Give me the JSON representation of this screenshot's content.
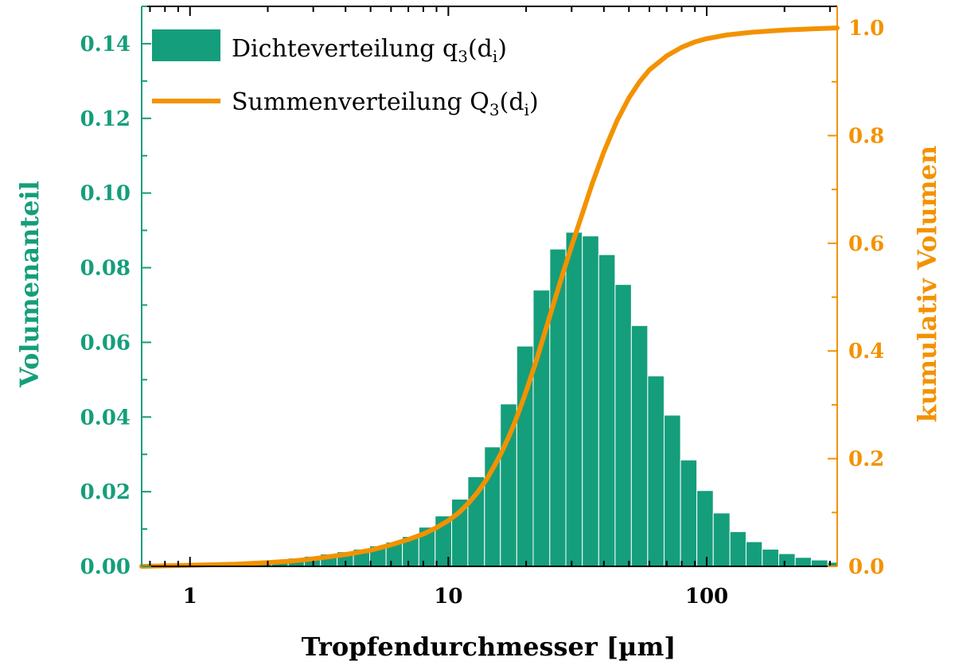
{
  "chart_data": {
    "type": "bar+line",
    "x_scale": "log",
    "xlabel": "Tropfendurchmesser [µm]",
    "x_ticks": [
      {
        "value": 1,
        "label": "1"
      },
      {
        "value": 10,
        "label": "10"
      },
      {
        "value": 100,
        "label": "100"
      }
    ],
    "xlim": [
      0.65,
      320
    ],
    "left_axis": {
      "label": "Volumenanteil",
      "ylim": [
        0,
        0.15
      ],
      "ticks": [
        {
          "value": 0.0,
          "label": "0.00"
        },
        {
          "value": 0.02,
          "label": "0.02"
        },
        {
          "value": 0.04,
          "label": "0.04"
        },
        {
          "value": 0.06,
          "label": "0.06"
        },
        {
          "value": 0.08,
          "label": "0.08"
        },
        {
          "value": 0.1,
          "label": "0.10"
        },
        {
          "value": 0.12,
          "label": "0.12"
        },
        {
          "value": 0.14,
          "label": "0.14"
        }
      ]
    },
    "right_axis": {
      "label": "kumulativ Volumen",
      "ylim": [
        0,
        1.04
      ],
      "ticks": [
        {
          "value": 0.0,
          "label": "0.0"
        },
        {
          "value": 0.2,
          "label": "0.2"
        },
        {
          "value": 0.4,
          "label": "0.4"
        },
        {
          "value": 0.6,
          "label": "0.6"
        },
        {
          "value": 0.8,
          "label": "0.8"
        },
        {
          "value": 1.0,
          "label": "1.0"
        }
      ]
    },
    "grid": false,
    "legend": {
      "position": "top-left",
      "entries": [
        {
          "kind": "bar",
          "label_main": "Dichteverteilung  q",
          "label_sub": "3",
          "label_paren": "(d",
          "label_sub2": "i",
          "label_end": ")"
        },
        {
          "kind": "line",
          "label_main": "Summenverteilung Q",
          "label_sub": "3",
          "label_paren": "(d",
          "label_sub2": "i",
          "label_end": ")"
        }
      ]
    },
    "series": [
      {
        "name": "Dichteverteilung q3(di)",
        "type": "bar",
        "axis": "left",
        "color": "#159e7b",
        "bin_edges": [
          0.65,
          0.75,
          0.87,
          1.0,
          1.16,
          1.34,
          1.55,
          1.79,
          2.07,
          2.4,
          2.77,
          3.2,
          3.71,
          4.29,
          4.96,
          5.74,
          6.64,
          7.69,
          8.89,
          10.3,
          11.9,
          13.8,
          15.9,
          18.4,
          21.3,
          24.7,
          28.5,
          33.0,
          38.2,
          44.2,
          51.1,
          59.1,
          68.4,
          79.2,
          91.6,
          106,
          123,
          142,
          164,
          190,
          220,
          254,
          294,
          320
        ],
        "values": [
          0.0003,
          0.0004,
          0.0005,
          0.0006,
          0.0008,
          0.001,
          0.0012,
          0.0015,
          0.0018,
          0.0022,
          0.0027,
          0.0033,
          0.0039,
          0.0046,
          0.0055,
          0.0065,
          0.008,
          0.0105,
          0.0135,
          0.018,
          0.024,
          0.032,
          0.0435,
          0.059,
          0.074,
          0.085,
          0.0895,
          0.0885,
          0.0835,
          0.0755,
          0.0645,
          0.051,
          0.0405,
          0.0285,
          0.0203,
          0.0143,
          0.0093,
          0.0066,
          0.0046,
          0.0034,
          0.0024,
          0.0017,
          0.0011
        ]
      },
      {
        "name": "Summenverteilung Q3(di)",
        "type": "line",
        "axis": "right",
        "color": "#f39200",
        "x": [
          0.65,
          1,
          1.5,
          2,
          2.5,
          3,
          4,
          5,
          6,
          7,
          8,
          9,
          10,
          11,
          12,
          13,
          14,
          15,
          16,
          17,
          18,
          19,
          20,
          22,
          24,
          26,
          28,
          30,
          33,
          36,
          40,
          45,
          50,
          55,
          60,
          70,
          80,
          90,
          100,
          120,
          150,
          200,
          250,
          320
        ],
        "values": [
          0.0,
          0.002,
          0.004,
          0.007,
          0.01,
          0.014,
          0.022,
          0.03,
          0.04,
          0.05,
          0.06,
          0.072,
          0.085,
          0.1,
          0.118,
          0.138,
          0.16,
          0.185,
          0.21,
          0.237,
          0.265,
          0.295,
          0.325,
          0.385,
          0.445,
          0.5,
          0.55,
          0.595,
          0.655,
          0.71,
          0.77,
          0.828,
          0.87,
          0.9,
          0.922,
          0.948,
          0.964,
          0.974,
          0.98,
          0.987,
          0.992,
          0.996,
          0.998,
          1.0
        ]
      }
    ],
    "colors": {
      "left_axis": "#159e7b",
      "right_axis": "#f39200",
      "frame": "#000000"
    }
  }
}
